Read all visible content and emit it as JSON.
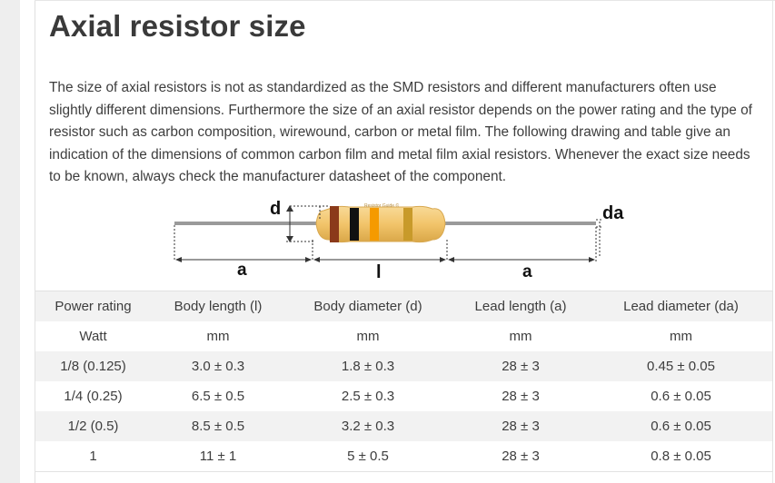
{
  "page": {
    "title": "Axial resistor size",
    "intro": "The size of axial resistors is not as standardized as the SMD resistors and different manufacturers often use slightly different dimensions. Furthermore the size of an axial resistor depends on the power rating and the type of resistor such as carbon composition, wirewound, carbon or metal film. The following drawing and table give an indication of the dimensions of common carbon film and metal film axial resistors. Whenever the exact size needs to be known, always check the manufacturer datasheet of the component."
  },
  "diagram": {
    "label_d": "d",
    "label_da": "da",
    "label_a_left": "a",
    "label_l": "l",
    "label_a_right": "a",
    "watermark": "Resistor Guide ©",
    "colors": {
      "body": "#f2c46a",
      "lead": "#9a9a9a",
      "band1": "#8b3a1a",
      "band2": "#111111",
      "band3": "#f59a00",
      "band4": "#c89a2a"
    }
  },
  "table": {
    "headers": [
      "Power rating",
      "Body length (l)",
      "Body diameter (d)",
      "Lead length (a)",
      "Lead diameter (da)"
    ],
    "units": [
      "Watt",
      "mm",
      "mm",
      "mm",
      "mm"
    ],
    "rows": [
      [
        "1/8 (0.125)",
        "3.0 ± 0.3",
        "1.8 ± 0.3",
        "28 ± 3",
        "0.45 ± 0.05"
      ],
      [
        "1/4 (0.25)",
        "6.5 ± 0.5",
        "2.5 ± 0.3",
        "28 ± 3",
        "0.6 ± 0.05"
      ],
      [
        "1/2 (0.5)",
        "8.5 ± 0.5",
        "3.2 ± 0.3",
        "28 ± 3",
        "0.6 ± 0.05"
      ],
      [
        "1",
        "11 ± 1",
        "5 ± 0.5",
        "28 ± 3",
        "0.8 ± 0.05"
      ]
    ]
  }
}
